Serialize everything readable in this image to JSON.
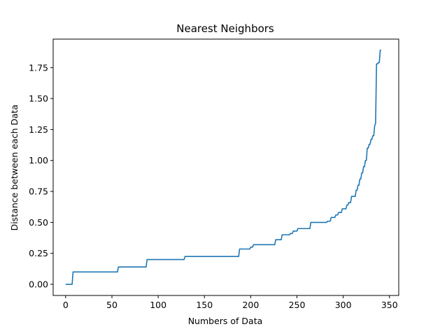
{
  "chart_data": {
    "type": "line",
    "title": "Nearest Neighbors",
    "xlabel": "Numbers of Data",
    "ylabel": "Distance between each Data",
    "xlim": [
      -13.5,
      360
    ],
    "ylim": [
      -0.09,
      1.98
    ],
    "xticks": [
      0,
      50,
      100,
      150,
      200,
      250,
      300,
      350
    ],
    "xtick_labels": [
      "0",
      "50",
      "100",
      "150",
      "200",
      "250",
      "300",
      "350"
    ],
    "yticks": [
      0.0,
      0.25,
      0.5,
      0.75,
      1.0,
      1.25,
      1.5,
      1.75
    ],
    "ytick_labels": [
      "0.00",
      "0.25",
      "0.50",
      "0.75",
      "1.00",
      "1.25",
      "1.50",
      "1.75"
    ],
    "grid": false,
    "series": [
      {
        "color": "#1f77b4",
        "x": [
          0,
          7,
          8,
          56,
          57,
          87,
          88,
          128,
          129,
          187,
          188,
          199,
          200,
          202,
          203,
          226,
          227,
          233,
          234,
          242,
          243,
          245,
          246,
          250,
          251,
          264,
          265,
          282,
          283,
          286,
          287,
          291,
          292,
          294,
          295,
          298,
          299,
          303,
          304,
          305,
          306,
          308,
          309,
          313,
          314,
          315,
          316,
          317,
          318,
          319,
          320,
          321,
          322,
          323,
          324,
          325,
          326,
          327,
          328,
          329,
          330,
          331,
          332,
          333,
          334,
          335,
          336,
          337,
          338,
          339,
          340,
          341
        ],
        "y": [
          0.0,
          0.0,
          0.1,
          0.1,
          0.14,
          0.14,
          0.2,
          0.2,
          0.225,
          0.225,
          0.285,
          0.285,
          0.3,
          0.3,
          0.32,
          0.32,
          0.36,
          0.36,
          0.4,
          0.4,
          0.41,
          0.41,
          0.43,
          0.43,
          0.45,
          0.45,
          0.5,
          0.5,
          0.51,
          0.51,
          0.54,
          0.54,
          0.56,
          0.56,
          0.58,
          0.58,
          0.61,
          0.61,
          0.64,
          0.64,
          0.66,
          0.66,
          0.71,
          0.71,
          0.76,
          0.76,
          0.8,
          0.8,
          0.85,
          0.85,
          0.9,
          0.9,
          0.95,
          0.95,
          1.0,
          1.0,
          1.1,
          1.1,
          1.13,
          1.13,
          1.17,
          1.17,
          1.2,
          1.2,
          1.28,
          1.3,
          1.78,
          1.78,
          1.79,
          1.79,
          1.89,
          1.89
        ]
      }
    ]
  }
}
